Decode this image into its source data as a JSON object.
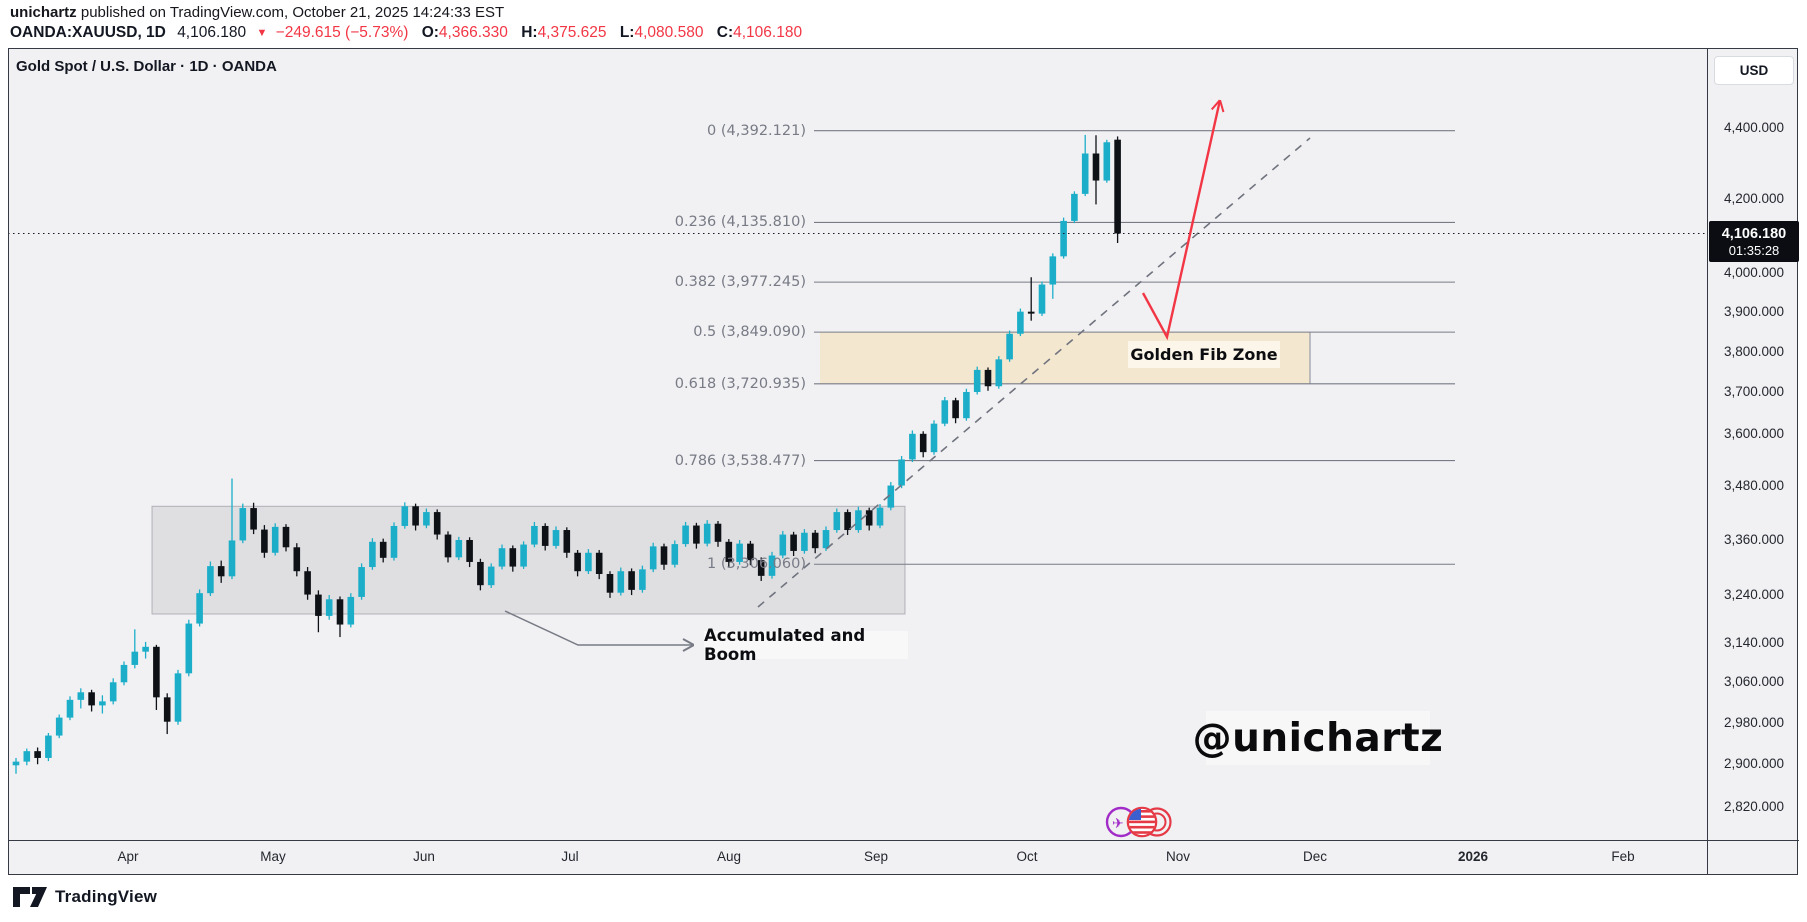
{
  "header": {
    "publisher": "unichartz",
    "published_rest": " published on TradingView.com, October 21, 2025 14:24:33 EST",
    "symbol": "OANDA:XAUUSD, 1D",
    "last_price": "4,106.180",
    "direction_icon": "▼",
    "change": "−249.615 (−5.73%)",
    "o_label": "O:",
    "o_value": "4,366.330",
    "h_label": "H:",
    "h_value": "4,375.625",
    "l_label": "L:",
    "l_value": "4,080.580",
    "c_label": "C:",
    "c_value": "4,106.180"
  },
  "chart": {
    "title": "Gold Spot / U.S. Dollar · 1D · OANDA",
    "currency_button": "USD",
    "price_badge": {
      "price": "4,106.180",
      "countdown": "01:35:28"
    },
    "watermark": "@unichartz",
    "tradingview_logo_text": "TradingView"
  },
  "annotations": {
    "golden_fib_zone": "Golden Fib Zone",
    "accumulated": "Accumulated and Boom"
  },
  "colors": {
    "up_candle": "#1caec9",
    "down_candle": "#0e1116",
    "accent_red": "#f23645",
    "line_gray": "#787b86",
    "zone_beige": "#f3e6cd",
    "accum_gray": "rgba(158,161,170,0.22)",
    "badge_bg": "#0b0d12",
    "plot_bg": "#f1f1f3",
    "border": "#363a45"
  },
  "chart_data": {
    "type": "candlestick",
    "symbol": "XAUUSD",
    "exchange": "OANDA",
    "timeframe": "1D",
    "title": "Gold Spot / U.S. Dollar · 1D · OANDA",
    "scale": "logarithmic",
    "current_price": 4106.18,
    "y_axis": {
      "position": "right",
      "ticks": [
        4400,
        4200,
        4000,
        3900,
        3800,
        3700,
        3600,
        3480,
        3360,
        3240,
        3140,
        3060,
        2980,
        2900,
        2820
      ],
      "tick_labels": [
        "4,400.000",
        "4,200.000",
        "4,000.000",
        "3,900.000",
        "3,800.000",
        "3,700.000",
        "3,600.000",
        "3,480.000",
        "3,360.000",
        "3,240.000",
        "3,140.000",
        "3,060.000",
        "2,980.000",
        "2,900.000",
        "2,820.000"
      ],
      "range_approx": [
        2745,
        4560
      ]
    },
    "x_axis": {
      "labels": [
        {
          "label": "Apr",
          "bold": false
        },
        {
          "label": "May",
          "bold": false
        },
        {
          "label": "Jun",
          "bold": false
        },
        {
          "label": "Jul",
          "bold": false
        },
        {
          "label": "Aug",
          "bold": false
        },
        {
          "label": "Sep",
          "bold": false
        },
        {
          "label": "Oct",
          "bold": false
        },
        {
          "label": "Nov",
          "bold": false
        },
        {
          "label": "Dec",
          "bold": false
        },
        {
          "label": "2026",
          "bold": true
        },
        {
          "label": "Feb",
          "bold": false
        }
      ]
    },
    "fib_levels": [
      {
        "level": "0",
        "price": 4392.121,
        "label": "0 (4,392.121)"
      },
      {
        "level": "0.236",
        "price": 4135.81,
        "label": "0.236 (4,135.810)"
      },
      {
        "level": "0.382",
        "price": 3977.245,
        "label": "0.382 (3,977.245)"
      },
      {
        "level": "0.5",
        "price": 3849.09,
        "label": "0.5 (3,849.090)"
      },
      {
        "level": "0.618",
        "price": 3720.935,
        "label": "0.618 (3,720.935)"
      },
      {
        "level": "0.786",
        "price": 3538.477,
        "label": "0.786 (3,538.477)"
      },
      {
        "level": "1",
        "price": 3306.06,
        "label": "1 (3,306.060)"
      }
    ],
    "zones": {
      "golden_fib_zone": {
        "price_top": 3849.09,
        "price_bottom": 3720.935
      },
      "accumulation_box": {
        "price_top": 3434,
        "price_bottom": 3200
      }
    },
    "ohlc_last": {
      "open": 4366.33,
      "high": 4375.625,
      "low": 4080.58,
      "close": 4106.18
    },
    "candles": [
      [
        2898,
        2912,
        2882,
        2905
      ],
      [
        2905,
        2930,
        2898,
        2925
      ],
      [
        2925,
        2932,
        2900,
        2912
      ],
      [
        2912,
        2960,
        2906,
        2955
      ],
      [
        2955,
        2996,
        2950,
        2990
      ],
      [
        2990,
        3032,
        2985,
        3025
      ],
      [
        3025,
        3048,
        3008,
        3040
      ],
      [
        3040,
        3045,
        3002,
        3014
      ],
      [
        3014,
        3034,
        2998,
        3022
      ],
      [
        3022,
        3068,
        3016,
        3060
      ],
      [
        3060,
        3102,
        3054,
        3095
      ],
      [
        3095,
        3168,
        3088,
        3122
      ],
      [
        3122,
        3142,
        3108,
        3132
      ],
      [
        3132,
        3136,
        3005,
        3030
      ],
      [
        3030,
        3038,
        2958,
        2982
      ],
      [
        2982,
        3085,
        2976,
        3078
      ],
      [
        3078,
        3188,
        3072,
        3180
      ],
      [
        3180,
        3252,
        3174,
        3244
      ],
      [
        3244,
        3312,
        3238,
        3302
      ],
      [
        3302,
        3314,
        3266,
        3280
      ],
      [
        3280,
        3497,
        3274,
        3358
      ],
      [
        3358,
        3440,
        3352,
        3430
      ],
      [
        3430,
        3442,
        3372,
        3382
      ],
      [
        3382,
        3392,
        3320,
        3331
      ],
      [
        3331,
        3396,
        3325,
        3388
      ],
      [
        3388,
        3394,
        3334,
        3343
      ],
      [
        3343,
        3352,
        3280,
        3291
      ],
      [
        3291,
        3300,
        3230,
        3241
      ],
      [
        3241,
        3250,
        3162,
        3196
      ],
      [
        3196,
        3240,
        3188,
        3231
      ],
      [
        3231,
        3237,
        3152,
        3178
      ],
      [
        3178,
        3244,
        3172,
        3236
      ],
      [
        3236,
        3308,
        3230,
        3300
      ],
      [
        3300,
        3363,
        3294,
        3355
      ],
      [
        3355,
        3362,
        3310,
        3320
      ],
      [
        3320,
        3398,
        3314,
        3390
      ],
      [
        3390,
        3443,
        3384,
        3434
      ],
      [
        3434,
        3440,
        3380,
        3391
      ],
      [
        3391,
        3429,
        3385,
        3421
      ],
      [
        3421,
        3427,
        3360,
        3371
      ],
      [
        3371,
        3378,
        3310,
        3321
      ],
      [
        3321,
        3366,
        3315,
        3359
      ],
      [
        3359,
        3365,
        3300,
        3311
      ],
      [
        3311,
        3318,
        3250,
        3261
      ],
      [
        3261,
        3308,
        3255,
        3301
      ],
      [
        3301,
        3349,
        3295,
        3341
      ],
      [
        3341,
        3347,
        3290,
        3301
      ],
      [
        3301,
        3356,
        3296,
        3349
      ],
      [
        3349,
        3399,
        3343,
        3390
      ],
      [
        3390,
        3396,
        3336,
        3346
      ],
      [
        3346,
        3389,
        3340,
        3381
      ],
      [
        3381,
        3387,
        3320,
        3331
      ],
      [
        3331,
        3337,
        3280,
        3291
      ],
      [
        3291,
        3339,
        3285,
        3331
      ],
      [
        3331,
        3337,
        3274,
        3285
      ],
      [
        3285,
        3291,
        3234,
        3245
      ],
      [
        3245,
        3299,
        3239,
        3291
      ],
      [
        3291,
        3297,
        3240,
        3251
      ],
      [
        3251,
        3303,
        3245,
        3295
      ],
      [
        3295,
        3353,
        3289,
        3345
      ],
      [
        3345,
        3351,
        3294,
        3305
      ],
      [
        3305,
        3358,
        3299,
        3350
      ],
      [
        3350,
        3399,
        3344,
        3391
      ],
      [
        3391,
        3397,
        3340,
        3351
      ],
      [
        3351,
        3403,
        3345,
        3395
      ],
      [
        3395,
        3401,
        3344,
        3355
      ],
      [
        3355,
        3361,
        3300,
        3311
      ],
      [
        3311,
        3359,
        3305,
        3351
      ],
      [
        3351,
        3357,
        3304,
        3315
      ],
      [
        3315,
        3321,
        3270,
        3281
      ],
      [
        3281,
        3333,
        3275,
        3325
      ],
      [
        3325,
        3379,
        3319,
        3371
      ],
      [
        3371,
        3377,
        3324,
        3335
      ],
      [
        3335,
        3383,
        3329,
        3375
      ],
      [
        3375,
        3381,
        3330,
        3341
      ],
      [
        3341,
        3389,
        3335,
        3381
      ],
      [
        3381,
        3429,
        3375,
        3421
      ],
      [
        3421,
        3427,
        3370,
        3381
      ],
      [
        3381,
        3433,
        3375,
        3425
      ],
      [
        3425,
        3431,
        3380,
        3391
      ],
      [
        3391,
        3439,
        3385,
        3431
      ],
      [
        3431,
        3489,
        3425,
        3481
      ],
      [
        3481,
        3549,
        3475,
        3541
      ],
      [
        3541,
        3609,
        3535,
        3601
      ],
      [
        3601,
        3607,
        3546,
        3558
      ],
      [
        3558,
        3633,
        3552,
        3625
      ],
      [
        3625,
        3689,
        3619,
        3681
      ],
      [
        3681,
        3687,
        3626,
        3638
      ],
      [
        3638,
        3709,
        3632,
        3701
      ],
      [
        3701,
        3763,
        3695,
        3755
      ],
      [
        3755,
        3761,
        3704,
        3715
      ],
      [
        3715,
        3789,
        3709,
        3781
      ],
      [
        3781,
        3853,
        3775,
        3845
      ],
      [
        3845,
        3909,
        3839,
        3901
      ],
      [
        3901,
        3990,
        3878,
        3896
      ],
      [
        3896,
        3979,
        3890,
        3971
      ],
      [
        3971,
        4053,
        3934,
        4045
      ],
      [
        4045,
        4149,
        4039,
        4140
      ],
      [
        4140,
        4221,
        4134,
        4214
      ],
      [
        4214,
        4380,
        4208,
        4327
      ],
      [
        4327,
        4379,
        4185,
        4251
      ],
      [
        4251,
        4366,
        4245,
        4359
      ],
      [
        4366.33,
        4375.625,
        4080.58,
        4106.18
      ]
    ]
  }
}
